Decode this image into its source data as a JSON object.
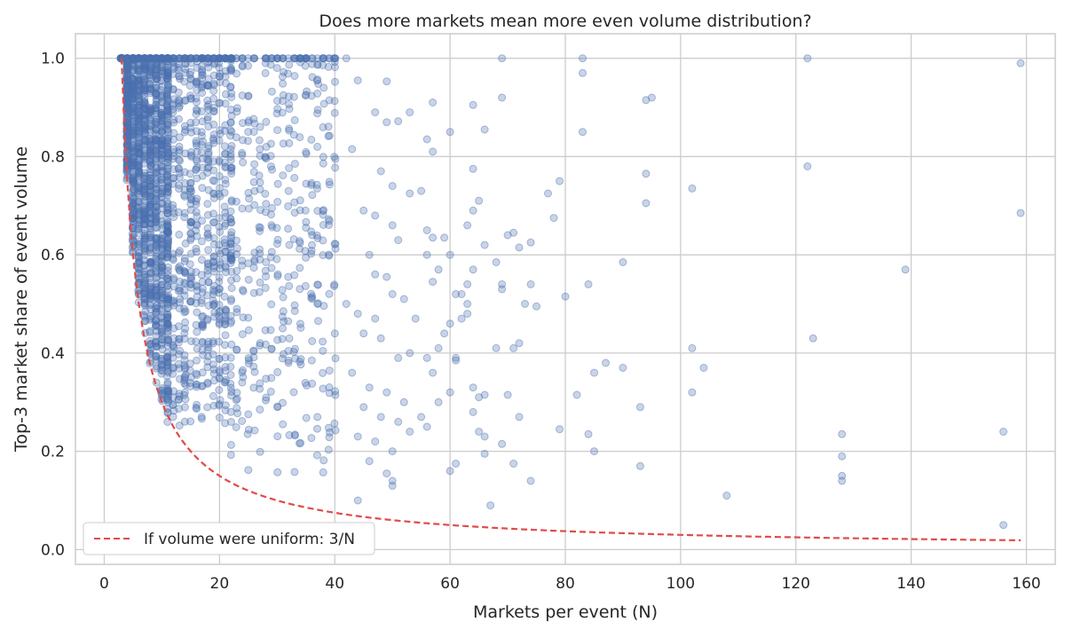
{
  "chart_data": {
    "type": "scatter",
    "title": "Does more markets mean more even volume distribution?",
    "xlabel": "Markets per event (N)",
    "ylabel": "Top-3 market share of event volume",
    "xlim": [
      -5,
      165
    ],
    "ylim": [
      -0.03,
      1.05
    ],
    "xticks": [
      0,
      20,
      40,
      60,
      80,
      100,
      120,
      140,
      160
    ],
    "yticks": [
      0.0,
      0.2,
      0.4,
      0.6,
      0.8,
      1.0
    ],
    "grid": true,
    "legend_position": "lower-left",
    "colors": {
      "points": "#4c72b0",
      "reference_line": "#e24a4a",
      "grid": "#cccccc",
      "frame": "#cccccc"
    },
    "series": [
      {
        "type": "scatter",
        "dense_clusters": [
          {
            "x_range": [
              3,
              11
            ],
            "y_range_min": "3/N",
            "y_max": 1.0,
            "count_per_x": 180
          },
          {
            "x_range": [
              11,
              22
            ],
            "y_min": 0.25,
            "y_max": 1.0,
            "count_per_x": 60
          },
          {
            "x_range": [
              22,
              40
            ],
            "y_min": 0.15,
            "y_max": 1.0,
            "count_per_x": 22
          }
        ],
        "points": [
          [
            3,
            1.0
          ],
          [
            5,
            1.0
          ],
          [
            8,
            1.0
          ],
          [
            12,
            1.0
          ],
          [
            15,
            1.0
          ],
          [
            18,
            1.0
          ],
          [
            21,
            1.0
          ],
          [
            24,
            1.0
          ],
          [
            26,
            1.0
          ],
          [
            28,
            1.0
          ],
          [
            30,
            1.0
          ],
          [
            33,
            1.0
          ],
          [
            35,
            1.0
          ],
          [
            37,
            1.0
          ],
          [
            38,
            1.0
          ],
          [
            40,
            1.0
          ],
          [
            42,
            1.0
          ],
          [
            44,
            0.955
          ],
          [
            49,
            0.953
          ],
          [
            47,
            0.89
          ],
          [
            49,
            0.87
          ],
          [
            51,
            0.872
          ],
          [
            53,
            0.89
          ],
          [
            43,
            0.815
          ],
          [
            48,
            0.77
          ],
          [
            50,
            0.74
          ],
          [
            53,
            0.725
          ],
          [
            45,
            0.69
          ],
          [
            47,
            0.68
          ],
          [
            50,
            0.66
          ],
          [
            51,
            0.63
          ],
          [
            46,
            0.6
          ],
          [
            47,
            0.56
          ],
          [
            49,
            0.555
          ],
          [
            42,
            0.5
          ],
          [
            44,
            0.48
          ],
          [
            47,
            0.47
          ],
          [
            50,
            0.52
          ],
          [
            52,
            0.51
          ],
          [
            54,
            0.47
          ],
          [
            45,
            0.44
          ],
          [
            48,
            0.43
          ],
          [
            51,
            0.39
          ],
          [
            53,
            0.4
          ],
          [
            43,
            0.36
          ],
          [
            46,
            0.33
          ],
          [
            49,
            0.32
          ],
          [
            52,
            0.3
          ],
          [
            45,
            0.29
          ],
          [
            48,
            0.27
          ],
          [
            51,
            0.26
          ],
          [
            44,
            0.23
          ],
          [
            47,
            0.22
          ],
          [
            50,
            0.2
          ],
          [
            53,
            0.24
          ],
          [
            46,
            0.18
          ],
          [
            49,
            0.155
          ],
          [
            50,
            0.14
          ],
          [
            50,
            0.13
          ],
          [
            44,
            0.1
          ],
          [
            57,
            0.91
          ],
          [
            56,
            0.835
          ],
          [
            57,
            0.81
          ],
          [
            60,
            0.85
          ],
          [
            55,
            0.73
          ],
          [
            56,
            0.65
          ],
          [
            57,
            0.635
          ],
          [
            59,
            0.635
          ],
          [
            56,
            0.6
          ],
          [
            58,
            0.57
          ],
          [
            60,
            0.6
          ],
          [
            57,
            0.545
          ],
          [
            61,
            0.52
          ],
          [
            60,
            0.46
          ],
          [
            59,
            0.44
          ],
          [
            58,
            0.41
          ],
          [
            56,
            0.39
          ],
          [
            57,
            0.36
          ],
          [
            60,
            0.32
          ],
          [
            58,
            0.3
          ],
          [
            55,
            0.27
          ],
          [
            56,
            0.25
          ],
          [
            60,
            0.16
          ],
          [
            61,
            0.175
          ],
          [
            61,
            0.39
          ],
          [
            61,
            0.385
          ],
          [
            63,
            0.5
          ],
          [
            64,
            0.905
          ],
          [
            64,
            0.775
          ],
          [
            65,
            0.71
          ],
          [
            66,
            0.855
          ],
          [
            64,
            0.69
          ],
          [
            63,
            0.66
          ],
          [
            66,
            0.62
          ],
          [
            64,
            0.57
          ],
          [
            63,
            0.54
          ],
          [
            62,
            0.52
          ],
          [
            62,
            0.47
          ],
          [
            63,
            0.48
          ],
          [
            64,
            0.33
          ],
          [
            65,
            0.31
          ],
          [
            66,
            0.315
          ],
          [
            64,
            0.28
          ],
          [
            65,
            0.24
          ],
          [
            66,
            0.23
          ],
          [
            66,
            0.195
          ],
          [
            67,
            0.09
          ],
          [
            69,
            1.0
          ],
          [
            69,
            0.92
          ],
          [
            68,
            0.585
          ],
          [
            69,
            0.54
          ],
          [
            69,
            0.53
          ],
          [
            70,
            0.64
          ],
          [
            71,
            0.645
          ],
          [
            72,
            0.615
          ],
          [
            68,
            0.41
          ],
          [
            71,
            0.41
          ],
          [
            72,
            0.42
          ],
          [
            70,
            0.315
          ],
          [
            69,
            0.215
          ],
          [
            71,
            0.175
          ],
          [
            73,
            0.5
          ],
          [
            74,
            0.54
          ],
          [
            75,
            0.495
          ],
          [
            72,
            0.27
          ],
          [
            74,
            0.625
          ],
          [
            74,
            0.14
          ],
          [
            77,
            0.725
          ],
          [
            78,
            0.675
          ],
          [
            79,
            0.75
          ],
          [
            80,
            0.515
          ],
          [
            79,
            0.245
          ],
          [
            82,
            0.315
          ],
          [
            83,
            0.85
          ],
          [
            83,
            0.97
          ],
          [
            83,
            1.0
          ],
          [
            84,
            0.54
          ],
          [
            84,
            0.235
          ],
          [
            85,
            0.36
          ],
          [
            85,
            0.2
          ],
          [
            87,
            0.38
          ],
          [
            90,
            0.585
          ],
          [
            90,
            0.37
          ],
          [
            93,
            0.29
          ],
          [
            93,
            0.17
          ],
          [
            94,
            0.915
          ],
          [
            95,
            0.92
          ],
          [
            94,
            0.765
          ],
          [
            94,
            0.705
          ],
          [
            102,
            0.735
          ],
          [
            102,
            0.41
          ],
          [
            102,
            0.32
          ],
          [
            104,
            0.37
          ],
          [
            108,
            0.11
          ],
          [
            122,
            1.0
          ],
          [
            122,
            0.78
          ],
          [
            123,
            0.43
          ],
          [
            128,
            0.235
          ],
          [
            128,
            0.19
          ],
          [
            128,
            0.15
          ],
          [
            128,
            0.14
          ],
          [
            139,
            0.57
          ],
          [
            156,
            0.24
          ],
          [
            156,
            0.05
          ],
          [
            159,
            0.99
          ],
          [
            159,
            0.685
          ]
        ]
      },
      {
        "type": "line",
        "name": "If volume were uniform: 3/N",
        "style": "dashed",
        "formula": "3/N",
        "x_range": [
          3,
          159
        ]
      }
    ]
  }
}
